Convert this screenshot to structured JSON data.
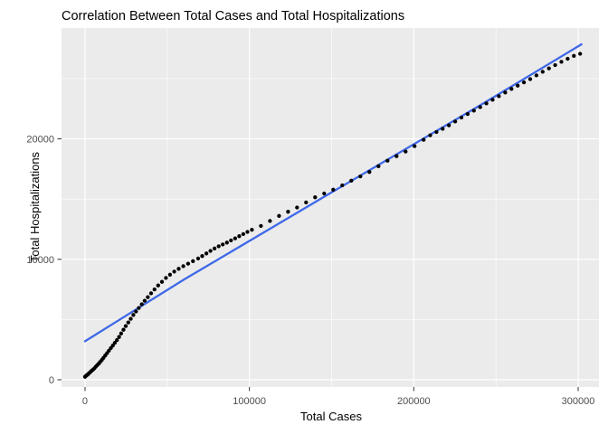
{
  "chart_data": {
    "type": "scatter",
    "title": "Correlation Between Total Cases and Total Hospitalizations",
    "xlabel": "Total Cases",
    "ylabel": "Total Hospitalizations",
    "x_ticks": [
      0,
      100000,
      200000,
      300000
    ],
    "x_minor_gridlines": [
      50000,
      150000,
      250000
    ],
    "y_ticks": [
      0,
      10000,
      20000
    ],
    "y_minor_gridlines": [
      5000,
      15000,
      25000
    ],
    "xlim": [
      -14300,
      312650
    ],
    "ylim": [
      -600,
      29200
    ],
    "grid": true,
    "legend": false,
    "colors": {
      "panel_background": "#EBEBEB",
      "gridline": "#FFFFFF",
      "tick_mark": "#333333",
      "tick_text": "#4D4D4D",
      "title_text": "#000000",
      "point": "#000000",
      "smooth_line": "#3E68E8"
    },
    "series": [
      {
        "name": "observations",
        "type": "scatter",
        "color": "#000000",
        "points": [
          [
            0,
            250
          ],
          [
            800,
            350
          ],
          [
            1600,
            430
          ],
          [
            2400,
            540
          ],
          [
            3200,
            640
          ],
          [
            4000,
            740
          ],
          [
            4800,
            830
          ],
          [
            5600,
            940
          ],
          [
            6500,
            1080
          ],
          [
            7400,
            1210
          ],
          [
            8300,
            1340
          ],
          [
            9200,
            1480
          ],
          [
            10200,
            1640
          ],
          [
            11200,
            1820
          ],
          [
            12300,
            2010
          ],
          [
            13400,
            2210
          ],
          [
            14500,
            2410
          ],
          [
            15700,
            2630
          ],
          [
            16900,
            2840
          ],
          [
            18100,
            3060
          ],
          [
            19400,
            3290
          ],
          [
            20700,
            3550
          ],
          [
            22000,
            3840
          ],
          [
            23400,
            4150
          ],
          [
            24800,
            4460
          ],
          [
            26300,
            4760
          ],
          [
            27800,
            5060
          ],
          [
            29400,
            5380
          ],
          [
            31000,
            5670
          ],
          [
            32700,
            5960
          ],
          [
            34500,
            6270
          ],
          [
            36300,
            6560
          ],
          [
            38200,
            6860
          ],
          [
            40200,
            7180
          ],
          [
            42300,
            7500
          ],
          [
            44500,
            7830
          ],
          [
            46800,
            8130
          ],
          [
            49200,
            8450
          ],
          [
            51700,
            8720
          ],
          [
            54300,
            8980
          ],
          [
            57000,
            9210
          ],
          [
            59800,
            9430
          ],
          [
            62700,
            9640
          ],
          [
            65700,
            9850
          ],
          [
            68800,
            10070
          ],
          [
            71300,
            10270
          ],
          [
            73800,
            10490
          ],
          [
            76300,
            10700
          ],
          [
            78800,
            10900
          ],
          [
            81300,
            11080
          ],
          [
            83800,
            11230
          ],
          [
            86300,
            11390
          ],
          [
            88800,
            11570
          ],
          [
            91300,
            11740
          ],
          [
            93800,
            11920
          ],
          [
            96300,
            12090
          ],
          [
            98800,
            12270
          ],
          [
            101500,
            12450
          ],
          [
            107000,
            12770
          ],
          [
            112500,
            13180
          ],
          [
            118000,
            13600
          ],
          [
            123500,
            13950
          ],
          [
            129000,
            14300
          ],
          [
            134500,
            14720
          ],
          [
            140000,
            15150
          ],
          [
            145500,
            15460
          ],
          [
            151000,
            15780
          ],
          [
            156500,
            16140
          ],
          [
            162000,
            16530
          ],
          [
            167500,
            16880
          ],
          [
            173000,
            17250
          ],
          [
            178500,
            17730
          ],
          [
            184000,
            18190
          ],
          [
            189500,
            18560
          ],
          [
            195000,
            18950
          ],
          [
            200500,
            19400
          ],
          [
            206000,
            19920
          ],
          [
            210000,
            20300
          ],
          [
            213800,
            20570
          ],
          [
            217600,
            20830
          ],
          [
            221400,
            21120
          ],
          [
            225200,
            21440
          ],
          [
            229000,
            21770
          ],
          [
            232800,
            22060
          ],
          [
            236600,
            22340
          ],
          [
            240400,
            22630
          ],
          [
            244200,
            22940
          ],
          [
            248000,
            23240
          ],
          [
            251800,
            23540
          ],
          [
            255600,
            23850
          ],
          [
            259400,
            24150
          ],
          [
            263200,
            24420
          ],
          [
            267000,
            24690
          ],
          [
            270800,
            24960
          ],
          [
            274600,
            25270
          ],
          [
            278400,
            25570
          ],
          [
            282200,
            25850
          ],
          [
            286000,
            26120
          ],
          [
            289800,
            26390
          ],
          [
            293600,
            26650
          ],
          [
            297400,
            26890
          ],
          [
            301200,
            27060
          ]
        ]
      },
      {
        "name": "linear-fit",
        "type": "line",
        "color": "#3E68E8",
        "points": [
          [
            0,
            3200
          ],
          [
            60000,
            8300
          ],
          [
            150000,
            15550
          ],
          [
            240000,
            22750
          ],
          [
            302000,
            27850
          ]
        ]
      }
    ]
  }
}
